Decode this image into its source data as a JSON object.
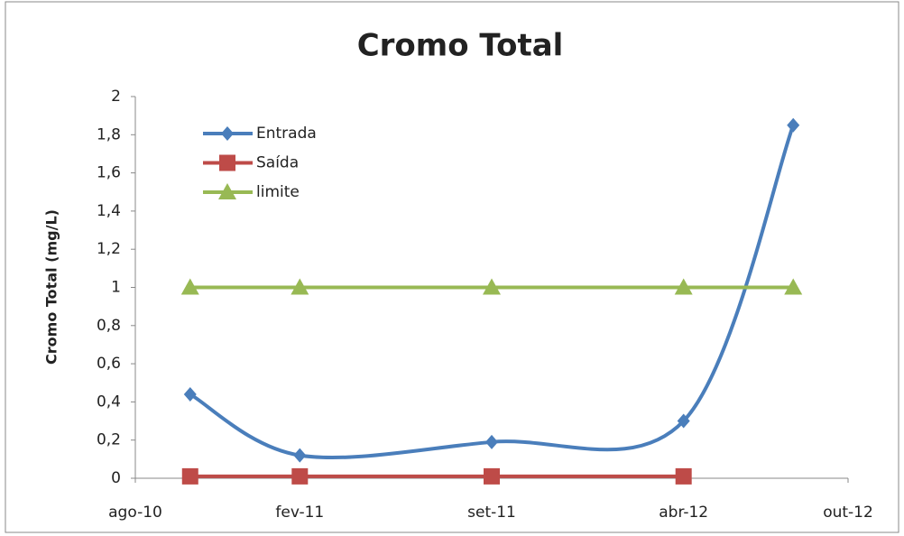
{
  "chart_data": {
    "type": "line",
    "title": "Cromo Total",
    "y_label": "Cromo Total (mg/L)",
    "x": [
      "2010-10",
      "2011-02",
      "2011-09",
      "2012-04",
      "2012-08"
    ],
    "xlim": [
      "2010-08",
      "2012-10"
    ],
    "xticks": [
      {
        "value": "2010-08",
        "label": "ago-10"
      },
      {
        "value": "2011-02",
        "label": "fev-11"
      },
      {
        "value": "2011-09",
        "label": "set-11"
      },
      {
        "value": "2012-04",
        "label": "abr-12"
      },
      {
        "value": "2012-10",
        "label": "out-12"
      }
    ],
    "ylim": [
      0,
      2
    ],
    "yticks": [
      0,
      {
        "value": 0.2,
        "label": "0,2"
      },
      {
        "value": 0.4,
        "label": "0,4"
      },
      {
        "value": 0.6,
        "label": "0,6"
      },
      {
        "value": 0.8,
        "label": "0,8"
      },
      1,
      {
        "value": 1.2,
        "label": "1,2"
      },
      {
        "value": 1.4,
        "label": "1,4"
      },
      {
        "value": 1.6,
        "label": "1,6"
      },
      {
        "value": 1.8,
        "label": "1,8"
      },
      2
    ],
    "series": [
      {
        "name": "Entrada",
        "color": "#4a7ebb",
        "marker": "diamond",
        "values": [
          0.44,
          0.12,
          0.19,
          0.3,
          1.85
        ]
      },
      {
        "name": "Saída",
        "color": "#be4b48",
        "marker": "square",
        "values": [
          0.01,
          0.01,
          0.01,
          0.01,
          null
        ]
      },
      {
        "name": "limite",
        "color": "#98b954",
        "marker": "triangle",
        "values": [
          1,
          1,
          1,
          1,
          1
        ]
      }
    ],
    "legend": "upper left"
  }
}
